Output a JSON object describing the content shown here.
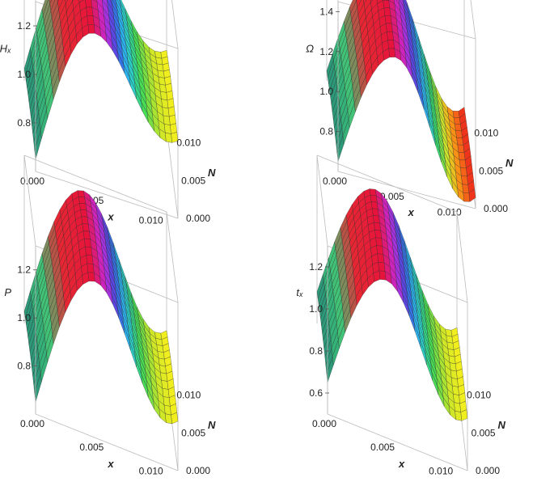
{
  "chart_data": [
    {
      "type": "surface3d",
      "zlabel": "Hₓ",
      "xlabel": "x",
      "ylabel": "N",
      "x_ticks": [
        "0.000",
        "0.005",
        "0.010"
      ],
      "y_ticks": [
        "0.000",
        "0.005",
        "0.010"
      ],
      "z_ticks": [
        "0.8",
        "1.0",
        "1.2"
      ],
      "x_range": [
        0,
        0.012
      ],
      "y_range": [
        0,
        0.012
      ],
      "z_range": [
        0.6,
        1.3
      ],
      "peak_x": 0.0045,
      "trough_level": 0.9,
      "color_scheme": "rainbow"
    },
    {
      "type": "surface3d",
      "zlabel": "Ω",
      "xlabel": "x",
      "ylabel": "N",
      "x_ticks": [
        "0.000",
        "0.005",
        "0.010"
      ],
      "y_ticks": [
        "0.000",
        "0.005",
        "0.010"
      ],
      "z_ticks": [
        "0.8",
        "1.0",
        "1.2",
        "1.4"
      ],
      "x_range": [
        0,
        0.012
      ],
      "y_range": [
        0,
        0.012
      ],
      "z_range": [
        0.6,
        1.45
      ],
      "peak_x": 0.0045,
      "trough_level": 0.62,
      "color_scheme": "rainbow"
    },
    {
      "type": "surface3d",
      "zlabel": "P",
      "xlabel": "x",
      "ylabel": "N",
      "x_ticks": [
        "0.000",
        "0.005",
        "0.010"
      ],
      "y_ticks": [
        "0.000",
        "0.005",
        "0.010"
      ],
      "z_ticks": [
        "0.8",
        "1.0",
        "1.2"
      ],
      "x_range": [
        0,
        0.012
      ],
      "y_range": [
        0,
        0.012
      ],
      "z_range": [
        0.6,
        1.3
      ],
      "peak_x": 0.0045,
      "trough_level": 0.78,
      "color_scheme": "rainbow"
    },
    {
      "type": "surface3d",
      "zlabel": "tₓ",
      "xlabel": "x",
      "ylabel": "N",
      "x_ticks": [
        "0.000",
        "0.005",
        "0.010"
      ],
      "y_ticks": [
        "0.000",
        "0.005",
        "0.010"
      ],
      "z_ticks": [
        "0.6",
        "0.8",
        "1.0",
        "1.2"
      ],
      "x_range": [
        0,
        0.012
      ],
      "y_range": [
        0,
        0.012
      ],
      "z_range": [
        0.5,
        1.3
      ],
      "peak_x": 0.0045,
      "trough_level": 0.72,
      "color_scheme": "rainbow"
    }
  ]
}
